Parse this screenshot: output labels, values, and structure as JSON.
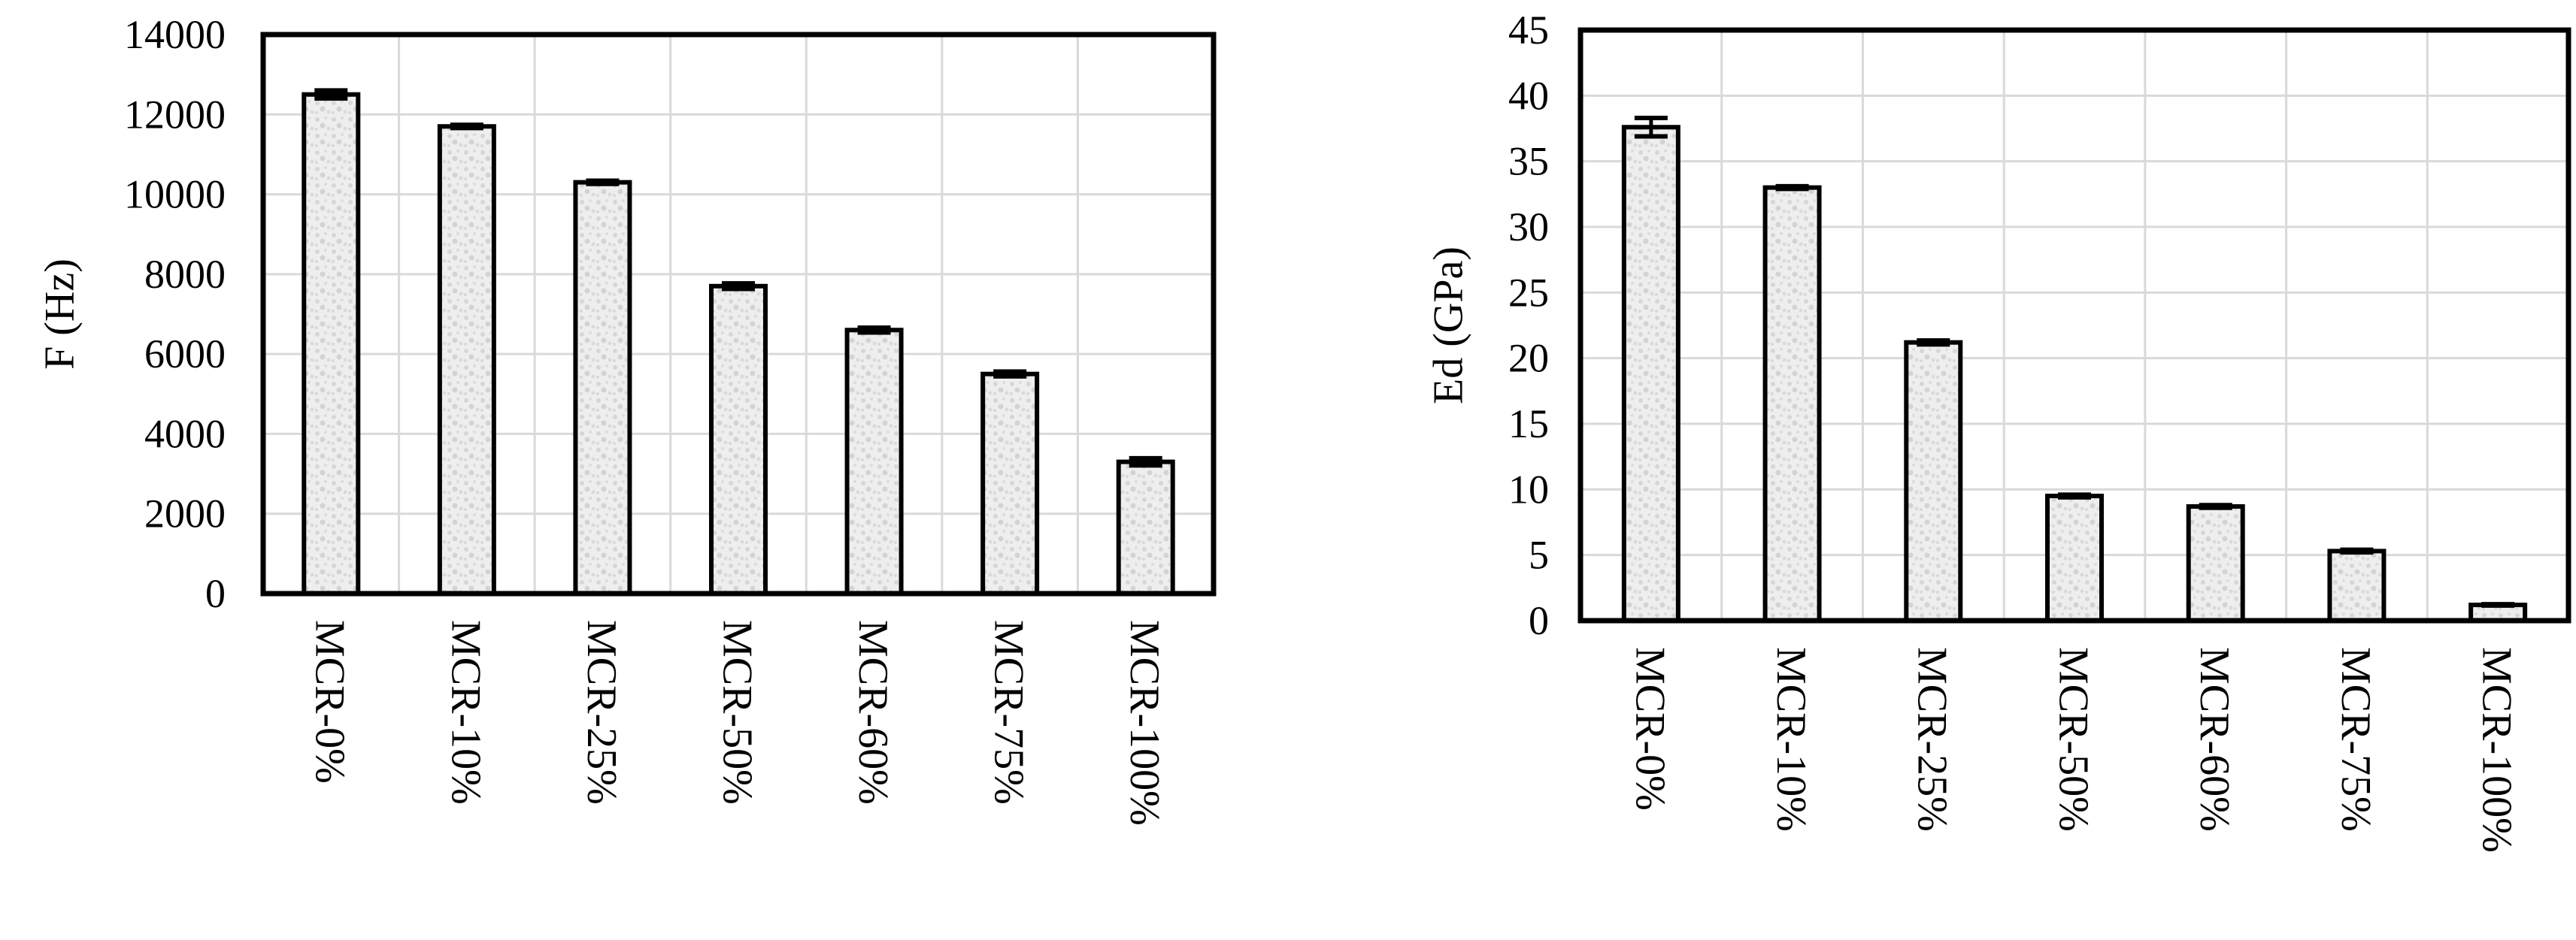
{
  "colors": {
    "bar_fill": "#eeeeee",
    "bar_texture": "#d6d6d6",
    "bar_stroke": "#000000",
    "grid": "#d9d9d9",
    "frame": "#000000"
  },
  "chart_data": [
    {
      "type": "bar",
      "title": "",
      "xlabel": "",
      "ylabel": "F (Hz)",
      "categories": [
        "MCR-0%",
        "MCR-10%",
        "MCR-25%",
        "MCR-50%",
        "MCR-60%",
        "MCR-75%",
        "MCR-100%"
      ],
      "values": [
        12500,
        11700,
        10300,
        7700,
        6600,
        5500,
        3300
      ],
      "errors": [
        100,
        40,
        40,
        70,
        60,
        60,
        90
      ],
      "ylim": [
        0,
        14000
      ],
      "yticks": [
        0,
        2000,
        4000,
        6000,
        8000,
        10000,
        12000,
        14000
      ],
      "grid": true,
      "legend": "none"
    },
    {
      "type": "bar",
      "title": "",
      "xlabel": "",
      "ylabel": "Ed (GPa)",
      "categories": [
        "MCR-0%",
        "MCR-10%",
        "MCR-25%",
        "MCR-50%",
        "MCR-60%",
        "MCR-75%",
        "MCR-100%"
      ],
      "values": [
        37.6,
        33.0,
        21.2,
        9.5,
        8.7,
        5.3,
        1.2
      ],
      "errors": [
        0.7,
        0.1,
        0.15,
        0.1,
        0.1,
        0.1,
        0.05
      ],
      "ylim": [
        0,
        45
      ],
      "yticks": [
        0,
        5,
        10,
        15,
        20,
        25,
        30,
        35,
        40,
        45
      ],
      "grid": true,
      "legend": "none"
    }
  ]
}
